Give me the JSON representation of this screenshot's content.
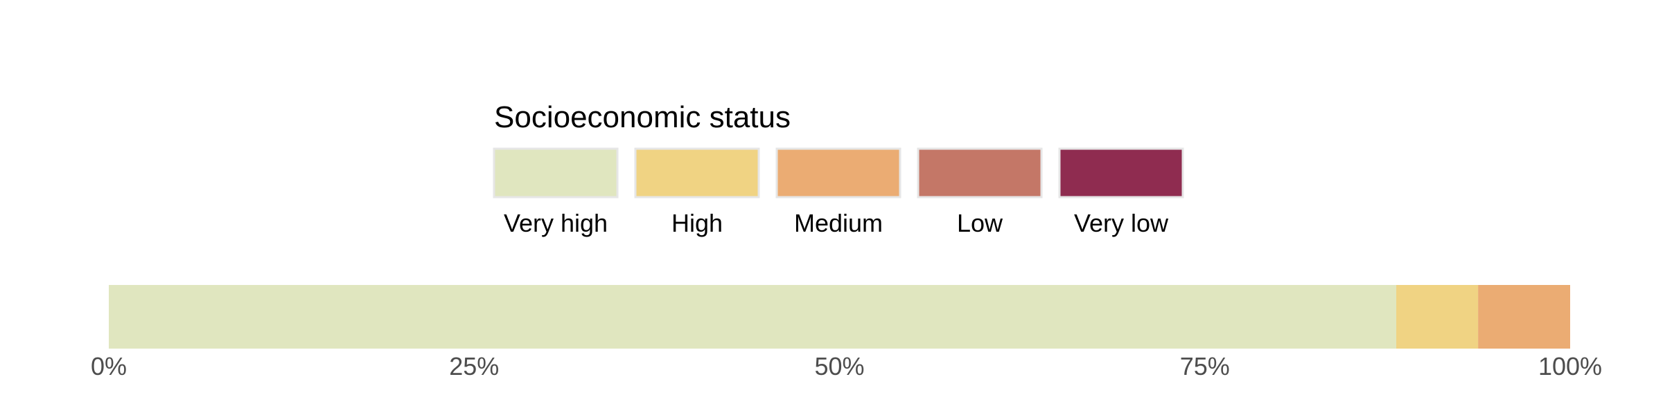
{
  "chart_data": {
    "type": "bar",
    "orientation": "horizontal",
    "stacked": true,
    "legend": {
      "title": "Socioeconomic status",
      "placement": "top"
    },
    "series": [
      {
        "name": "Very high",
        "value": 88.1,
        "color": "#e0e6bf"
      },
      {
        "name": "High",
        "value": 5.6,
        "color": "#f0d383"
      },
      {
        "name": "Medium",
        "value": 6.3,
        "color": "#ebac73"
      },
      {
        "name": "Low",
        "value": 0,
        "color": "#c47767"
      },
      {
        "name": "Very low",
        "value": 0,
        "color": "#8f2c50"
      }
    ],
    "xlim": [
      0,
      100
    ],
    "x_ticks": [
      {
        "value": 0,
        "label": "0%"
      },
      {
        "value": 25,
        "label": "25%"
      },
      {
        "value": 50,
        "label": "50%"
      },
      {
        "value": 75,
        "label": "75%"
      },
      {
        "value": 100,
        "label": "100%"
      }
    ],
    "grid": false
  }
}
